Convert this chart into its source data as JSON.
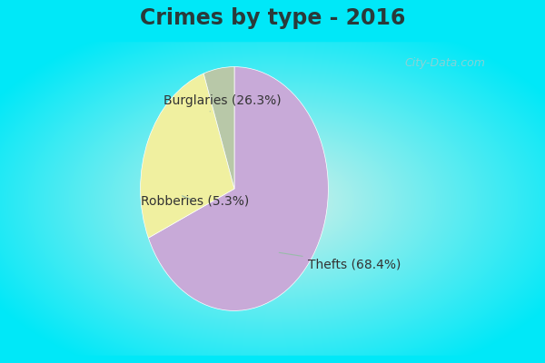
{
  "title": "Crimes by type - 2016",
  "slices": [
    {
      "label": "Thefts (68.4%)",
      "value": 68.4,
      "color": "#c8aad8"
    },
    {
      "label": "Burglaries (26.3%)",
      "value": 26.3,
      "color": "#f0f0a0"
    },
    {
      "label": "Robberies (5.3%)",
      "value": 5.3,
      "color": "#b8c8a8"
    }
  ],
  "background_cyan": "#00e8f8",
  "background_center": "#d4f0e8",
  "title_fontsize": 17,
  "label_fontsize": 10,
  "watermark": "City-Data.com",
  "startangle": 90,
  "title_color": "#2a3a3a",
  "label_color": "#333333",
  "arrow_color": "#99bbaa"
}
